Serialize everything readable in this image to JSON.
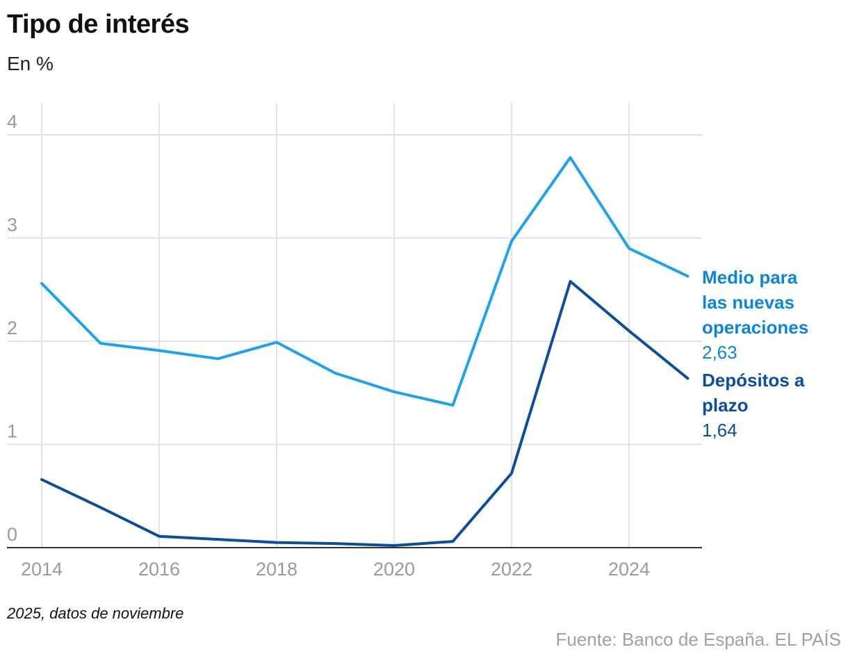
{
  "header": {
    "title": "Tipo de interés",
    "subtitle": "En %"
  },
  "footer": {
    "note": "2025, datos de noviembre",
    "source": "Fuente: Banco de España. EL PAÍS"
  },
  "colors": {
    "medio": "#1ba3f2",
    "depositos": "#0b4f9c",
    "medio_label": "#0b86d9",
    "grid": "#e3e3e3",
    "axis": "#333333",
    "ticks": "#9a9a9a"
  },
  "chart_data": {
    "type": "line",
    "title": "Tipo de interés",
    "subtitle": "En %",
    "x": [
      2014,
      2015,
      2016,
      2017,
      2018,
      2019,
      2020,
      2021,
      2022,
      2023,
      2024,
      2025
    ],
    "xticks": [
      "2014",
      "2016",
      "2018",
      "2020",
      "2022",
      "2024"
    ],
    "yticks": [
      "0",
      "1",
      "2",
      "3",
      "4"
    ],
    "ylim": [
      0,
      4.3
    ],
    "grid": true,
    "legend": "right-end labels",
    "series": [
      {
        "name_lines": [
          "Medio para",
          "las nuevas",
          "operaciones"
        ],
        "last_value_label": "2,63",
        "color_key": "medio",
        "values": [
          2.56,
          1.98,
          1.91,
          1.83,
          1.99,
          1.69,
          1.51,
          1.38,
          2.97,
          3.78,
          2.9,
          2.63
        ]
      },
      {
        "name_lines": [
          "Depósitos a",
          "plazo"
        ],
        "last_value_label": "1,64",
        "color_key": "depositos",
        "values": [
          0.66,
          0.39,
          0.11,
          0.08,
          0.05,
          0.04,
          0.02,
          0.06,
          0.72,
          2.58,
          2.1,
          1.64
        ]
      }
    ]
  }
}
